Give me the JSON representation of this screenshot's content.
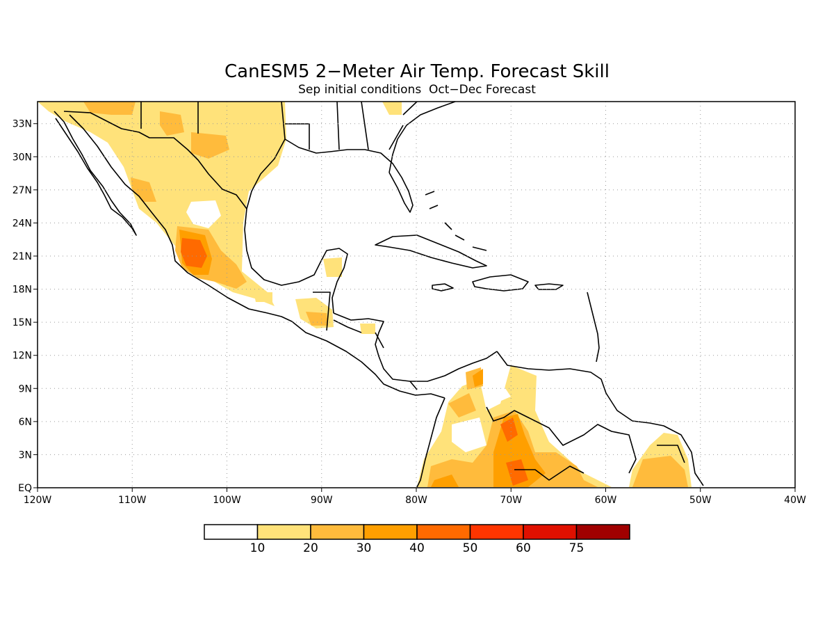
{
  "title": "CanESM5 2−Meter Air Temp. Forecast Skill",
  "subtitle": "Sep initial conditions  Oct−Dec Forecast",
  "map": {
    "lon_range": [
      -120,
      -40
    ],
    "lat_range": [
      0,
      35
    ],
    "x_tick_labels": [
      "120W",
      "110W",
      "100W",
      "90W",
      "80W",
      "70W",
      "60W",
      "50W",
      "40W"
    ],
    "y_tick_labels": [
      "EQ",
      "3N",
      "6N",
      "9N",
      "12N",
      "15N",
      "18N",
      "21N",
      "24N",
      "27N",
      "30N",
      "33N"
    ],
    "grid": "dotted"
  },
  "legend": {
    "labels": [
      "10",
      "20",
      "30",
      "40",
      "50",
      "60",
      "75"
    ],
    "colors": [
      "#ffffff",
      "#ffe27a",
      "#ffbb3c",
      "#ff9f00",
      "#ff6a00",
      "#ff3500",
      "#e01000",
      "#a00000"
    ]
  }
}
